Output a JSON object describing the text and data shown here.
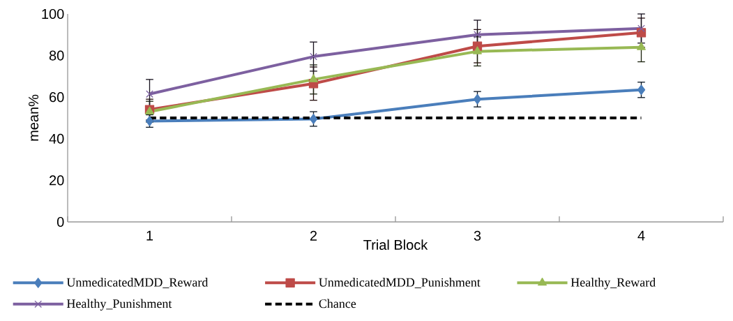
{
  "chart_data": {
    "type": "line",
    "xlabel": "Trial Block",
    "ylabel": "mean%",
    "categories": [
      "1",
      "2",
      "3",
      "4"
    ],
    "ylim": [
      0,
      100
    ],
    "yticks": [
      0,
      20,
      40,
      60,
      80,
      100
    ],
    "grid": false,
    "legend": "bottom",
    "series": [
      {
        "name": "UnmedicatedMDD_Reward",
        "color": "#4a7ebb",
        "marker": "diamond",
        "values": [
          48.5,
          49.5,
          59,
          63.5
        ],
        "errors": [
          3,
          3.5,
          3.7,
          3.7
        ]
      },
      {
        "name": "UnmedicatedMDD_Punishment",
        "color": "#be4b48",
        "marker": "square",
        "values": [
          54,
          66.5,
          84.5,
          91
        ],
        "errors": [
          5,
          8,
          8,
          7
        ]
      },
      {
        "name": "Healthy_Reward",
        "color": "#98b954",
        "marker": "triangle",
        "values": [
          53,
          68.5,
          82,
          84
        ],
        "errors": [
          5,
          7,
          7,
          7
        ]
      },
      {
        "name": "Healthy_Punishment",
        "color": "#7d60a0",
        "marker": "cross",
        "values": [
          61.5,
          79.5,
          90,
          93
        ],
        "errors": [
          7,
          7,
          7,
          7
        ]
      },
      {
        "name": "Chance",
        "color": "#000000",
        "marker": "none",
        "line_style": "dashed",
        "values": [
          50,
          50,
          50,
          50
        ]
      }
    ]
  }
}
